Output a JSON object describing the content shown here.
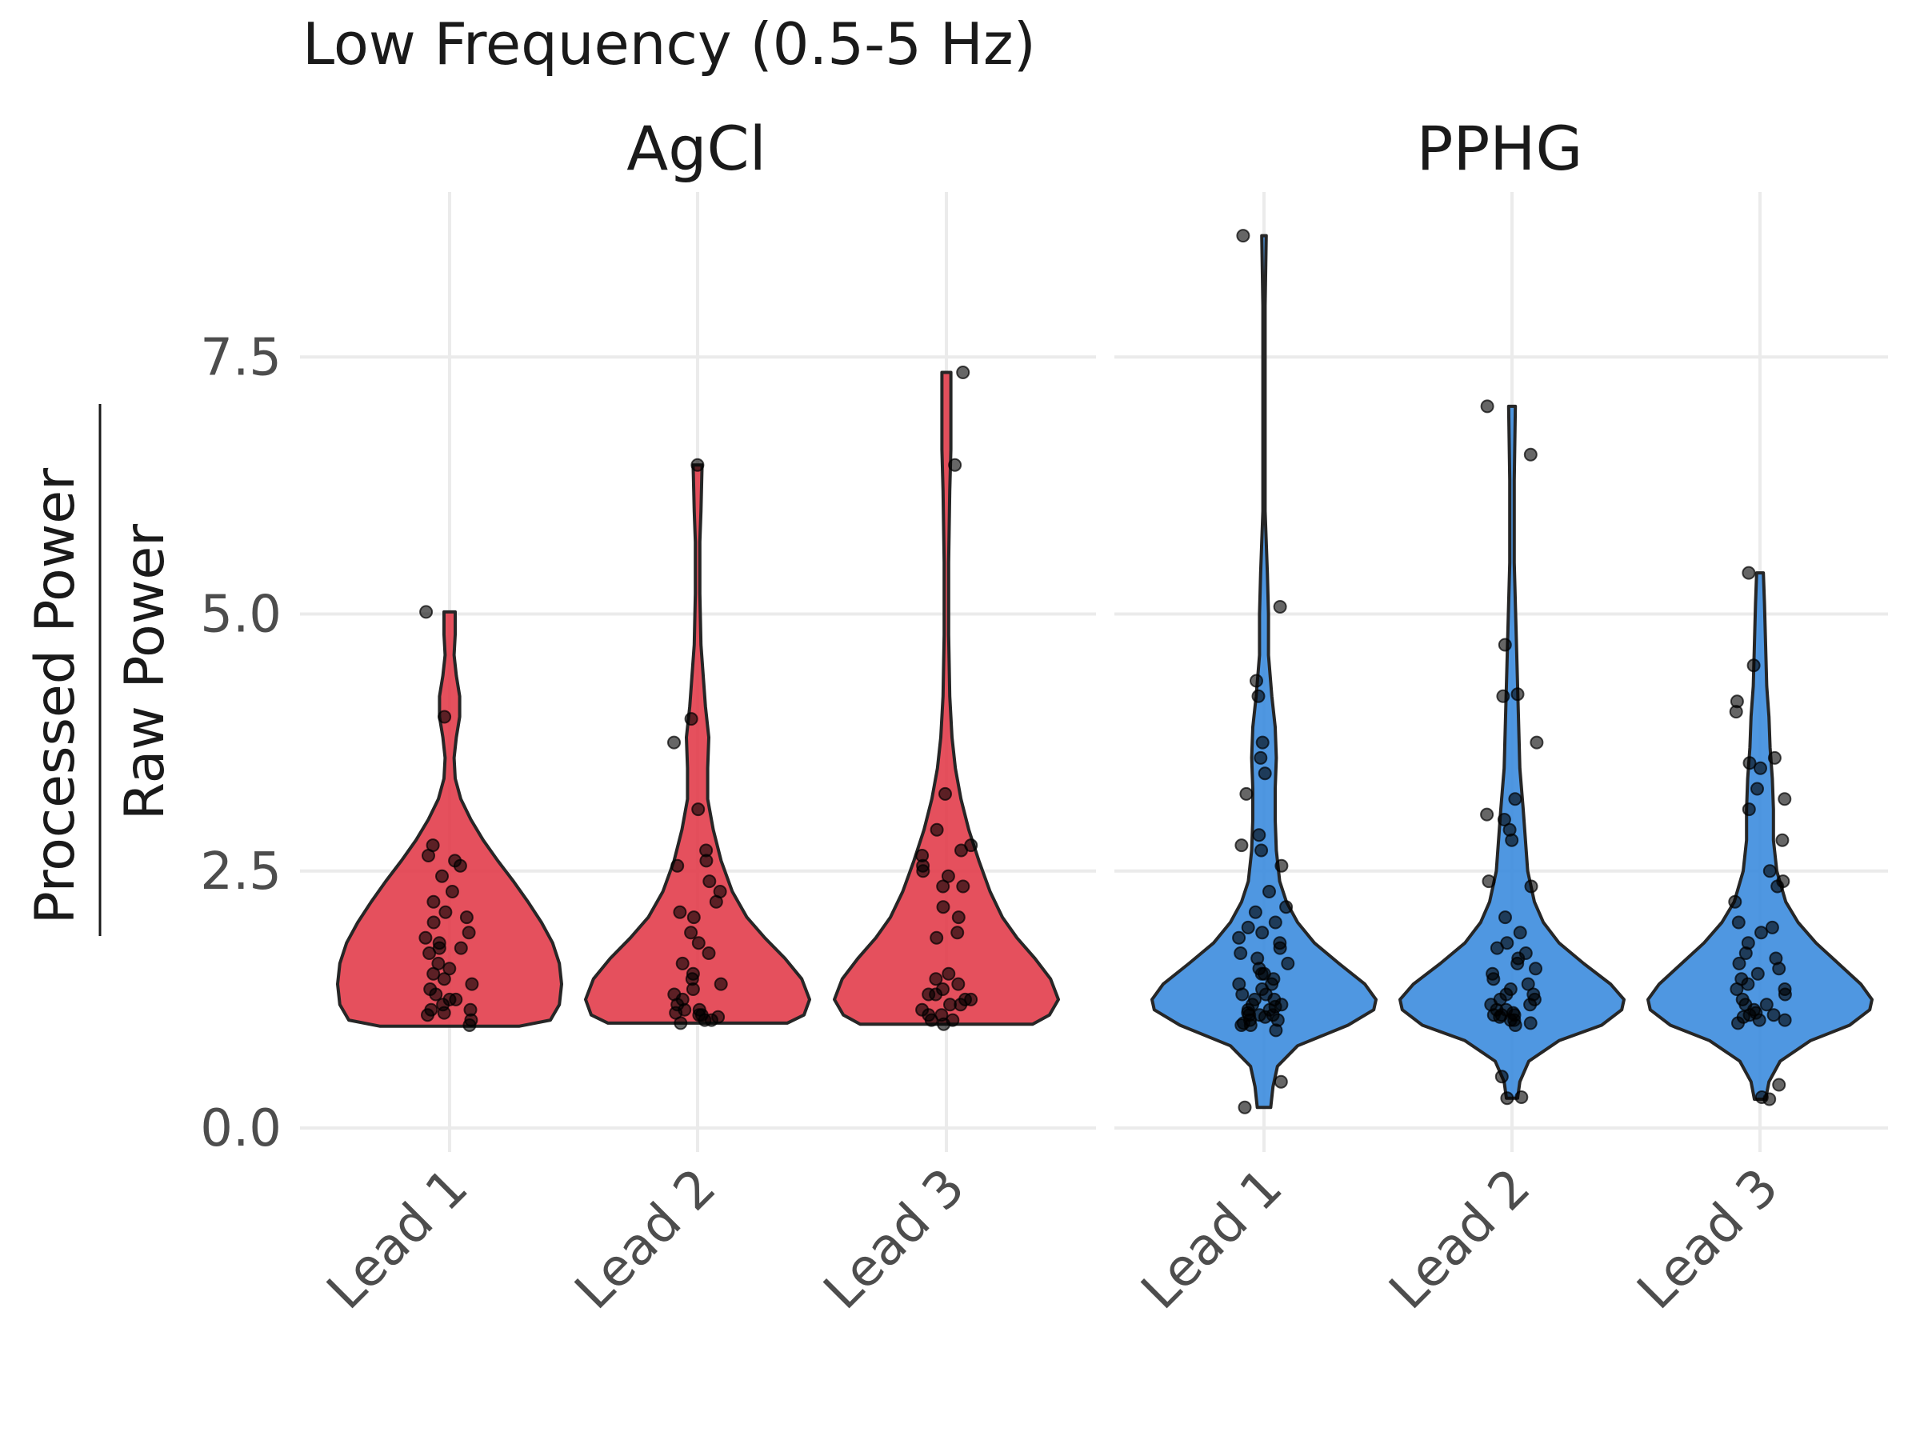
{
  "chart_data": {
    "type": "violin",
    "title": "Low Frequency (0.5-5 Hz)",
    "ylabel_numerator": "Processed Power",
    "ylabel_denominator": "Raw Power",
    "xlabel": "",
    "categories": [
      "Lead 1",
      "Lead 2",
      "Lead 3"
    ],
    "y_ticks": [
      "0.0",
      "2.5",
      "5.0",
      "7.5"
    ],
    "y_tick_values": [
      0,
      2.5,
      5.0,
      7.5
    ],
    "ylim": [
      -0.2,
      9.1
    ],
    "grid": true,
    "legend": "none",
    "facets": [
      {
        "name": "AgCl",
        "color": "#E23D4B",
        "series": [
          {
            "category": "Lead 1",
            "range": [
              0.99,
              5.02
            ],
            "profile": [
              [
                0.99,
                0.62
              ],
              [
                1.05,
                0.9
              ],
              [
                1.2,
                0.98
              ],
              [
                1.4,
                1.0
              ],
              [
                1.6,
                0.98
              ],
              [
                1.8,
                0.92
              ],
              [
                2.0,
                0.82
              ],
              [
                2.2,
                0.7
              ],
              [
                2.4,
                0.57
              ],
              [
                2.6,
                0.43
              ],
              [
                2.8,
                0.3
              ],
              [
                3.0,
                0.19
              ],
              [
                3.2,
                0.1
              ],
              [
                3.4,
                0.05
              ],
              [
                3.6,
                0.04
              ],
              [
                3.8,
                0.06
              ],
              [
                4.0,
                0.09
              ],
              [
                4.2,
                0.09
              ],
              [
                4.4,
                0.06
              ],
              [
                4.6,
                0.04
              ],
              [
                4.8,
                0.05
              ],
              [
                5.02,
                0.05
              ]
            ],
            "values": [
              1.0,
              1.05,
              1.1,
              1.12,
              1.15,
              1.15,
              1.2,
              1.25,
              1.25,
              1.3,
              1.35,
              1.4,
              1.45,
              1.5,
              1.55,
              1.6,
              1.7,
              1.75,
              1.75,
              1.8,
              1.85,
              1.9,
              2.0,
              2.05,
              2.1,
              2.2,
              2.3,
              2.45,
              2.55,
              2.6,
              2.65,
              2.75,
              4.0,
              5.02
            ]
          },
          {
            "category": "Lead 2",
            "range": [
              1.02,
              6.45
            ],
            "profile": [
              [
                1.02,
                0.8
              ],
              [
                1.1,
                0.95
              ],
              [
                1.25,
                1.0
              ],
              [
                1.45,
                0.93
              ],
              [
                1.65,
                0.78
              ],
              [
                1.85,
                0.6
              ],
              [
                2.05,
                0.44
              ],
              [
                2.3,
                0.31
              ],
              [
                2.6,
                0.21
              ],
              [
                2.9,
                0.14
              ],
              [
                3.2,
                0.09
              ],
              [
                3.5,
                0.09
              ],
              [
                3.8,
                0.1
              ],
              [
                4.1,
                0.07
              ],
              [
                4.4,
                0.05
              ],
              [
                4.7,
                0.03
              ],
              [
                5.2,
                0.02
              ],
              [
                5.7,
                0.02
              ],
              [
                6.0,
                0.03
              ],
              [
                6.45,
                0.04
              ]
            ],
            "values": [
              1.02,
              1.05,
              1.05,
              1.08,
              1.1,
              1.1,
              1.12,
              1.15,
              1.15,
              1.2,
              1.25,
              1.3,
              1.35,
              1.4,
              1.45,
              1.5,
              1.6,
              1.7,
              1.8,
              1.9,
              2.05,
              2.1,
              2.2,
              2.3,
              2.4,
              2.55,
              2.6,
              2.7,
              3.1,
              3.75,
              3.98,
              6.45
            ]
          },
          {
            "category": "Lead 3",
            "range": [
              1.01,
              7.35
            ],
            "profile": [
              [
                1.01,
                0.77
              ],
              [
                1.1,
                0.92
              ],
              [
                1.25,
                1.0
              ],
              [
                1.45,
                0.93
              ],
              [
                1.65,
                0.79
              ],
              [
                1.85,
                0.63
              ],
              [
                2.05,
                0.5
              ],
              [
                2.3,
                0.39
              ],
              [
                2.6,
                0.29
              ],
              [
                2.9,
                0.2
              ],
              [
                3.2,
                0.13
              ],
              [
                3.5,
                0.08
              ],
              [
                3.8,
                0.05
              ],
              [
                4.2,
                0.03
              ],
              [
                4.8,
                0.02
              ],
              [
                5.5,
                0.02
              ],
              [
                6.2,
                0.03
              ],
              [
                6.6,
                0.04
              ],
              [
                7.0,
                0.04
              ],
              [
                7.35,
                0.04
              ]
            ],
            "values": [
              1.01,
              1.05,
              1.05,
              1.1,
              1.1,
              1.15,
              1.2,
              1.2,
              1.25,
              1.25,
              1.3,
              1.3,
              1.35,
              1.4,
              1.45,
              1.5,
              1.85,
              1.9,
              2.05,
              2.15,
              2.35,
              2.35,
              2.45,
              2.5,
              2.55,
              2.65,
              2.7,
              2.75,
              2.9,
              3.25,
              6.45,
              7.35
            ]
          }
        ]
      },
      {
        "name": "PPHG",
        "color": "#3C8CDE",
        "series": [
          {
            "category": "Lead 1",
            "range": [
              0.2,
              8.68
            ],
            "profile": [
              [
                0.2,
                0.06
              ],
              [
                0.4,
                0.08
              ],
              [
                0.6,
                0.12
              ],
              [
                0.8,
                0.3
              ],
              [
                1.0,
                0.75
              ],
              [
                1.15,
                0.98
              ],
              [
                1.25,
                1.0
              ],
              [
                1.4,
                0.9
              ],
              [
                1.6,
                0.67
              ],
              [
                1.8,
                0.45
              ],
              [
                2.0,
                0.3
              ],
              [
                2.2,
                0.2
              ],
              [
                2.4,
                0.14
              ],
              [
                2.7,
                0.11
              ],
              [
                3.0,
                0.1
              ],
              [
                3.3,
                0.1
              ],
              [
                3.6,
                0.11
              ],
              [
                3.9,
                0.1
              ],
              [
                4.2,
                0.07
              ],
              [
                4.6,
                0.04
              ],
              [
                5.0,
                0.04
              ],
              [
                5.4,
                0.03
              ],
              [
                6.0,
                0.01
              ],
              [
                7.0,
                0.01
              ],
              [
                8.0,
                0.01
              ],
              [
                8.68,
                0.02
              ]
            ],
            "values": [
              0.2,
              0.45,
              0.95,
              1.0,
              1.0,
              1.02,
              1.05,
              1.05,
              1.08,
              1.1,
              1.1,
              1.1,
              1.12,
              1.15,
              1.15,
              1.18,
              1.2,
              1.2,
              1.25,
              1.25,
              1.3,
              1.3,
              1.35,
              1.4,
              1.4,
              1.45,
              1.5,
              1.5,
              1.55,
              1.6,
              1.65,
              1.7,
              1.75,
              1.8,
              1.85,
              1.9,
              1.95,
              2.0,
              2.1,
              2.15,
              2.3,
              2.55,
              2.7,
              2.75,
              2.85,
              3.25,
              3.45,
              3.6,
              3.75,
              4.2,
              4.35,
              5.07,
              8.68
            ]
          },
          {
            "category": "Lead 2",
            "range": [
              0.29,
              7.02
            ],
            "profile": [
              [
                0.29,
                0.05
              ],
              [
                0.45,
                0.07
              ],
              [
                0.65,
                0.15
              ],
              [
                0.85,
                0.42
              ],
              [
                1.0,
                0.8
              ],
              [
                1.15,
                0.98
              ],
              [
                1.25,
                1.0
              ],
              [
                1.4,
                0.88
              ],
              [
                1.6,
                0.64
              ],
              [
                1.8,
                0.42
              ],
              [
                2.0,
                0.28
              ],
              [
                2.2,
                0.2
              ],
              [
                2.5,
                0.14
              ],
              [
                2.8,
                0.12
              ],
              [
                3.1,
                0.1
              ],
              [
                3.5,
                0.07
              ],
              [
                3.9,
                0.06
              ],
              [
                4.3,
                0.05
              ],
              [
                4.7,
                0.04
              ],
              [
                5.5,
                0.02
              ],
              [
                6.3,
                0.02
              ],
              [
                7.02,
                0.03
              ]
            ],
            "values": [
              0.29,
              0.3,
              0.5,
              1.0,
              1.02,
              1.05,
              1.05,
              1.08,
              1.1,
              1.1,
              1.1,
              1.12,
              1.15,
              1.15,
              1.2,
              1.2,
              1.25,
              1.25,
              1.3,
              1.3,
              1.35,
              1.4,
              1.45,
              1.5,
              1.55,
              1.6,
              1.65,
              1.7,
              1.75,
              1.8,
              1.9,
              2.05,
              2.35,
              2.4,
              2.8,
              2.9,
              3.0,
              3.05,
              3.2,
              3.75,
              4.2,
              4.22,
              4.7,
              6.55,
              7.02
            ]
          },
          {
            "category": "Lead 3",
            "range": [
              0.28,
              5.4
            ],
            "profile": [
              [
                0.28,
                0.05
              ],
              [
                0.45,
                0.08
              ],
              [
                0.65,
                0.18
              ],
              [
                0.85,
                0.45
              ],
              [
                1.0,
                0.8
              ],
              [
                1.15,
                0.98
              ],
              [
                1.25,
                1.0
              ],
              [
                1.4,
                0.9
              ],
              [
                1.6,
                0.7
              ],
              [
                1.8,
                0.5
              ],
              [
                2.0,
                0.34
              ],
              [
                2.2,
                0.23
              ],
              [
                2.5,
                0.15
              ],
              [
                2.8,
                0.12
              ],
              [
                3.1,
                0.12
              ],
              [
                3.4,
                0.11
              ],
              [
                3.7,
                0.09
              ],
              [
                4.0,
                0.08
              ],
              [
                4.3,
                0.06
              ],
              [
                4.7,
                0.05
              ],
              [
                5.1,
                0.04
              ],
              [
                5.4,
                0.03
              ]
            ],
            "values": [
              0.28,
              0.3,
              0.42,
              1.02,
              1.05,
              1.05,
              1.08,
              1.1,
              1.1,
              1.12,
              1.15,
              1.2,
              1.2,
              1.25,
              1.3,
              1.35,
              1.35,
              1.4,
              1.45,
              1.5,
              1.55,
              1.6,
              1.65,
              1.7,
              1.8,
              1.9,
              1.95,
              2.0,
              2.2,
              2.35,
              2.4,
              2.5,
              2.8,
              3.1,
              3.2,
              3.3,
              3.5,
              3.55,
              3.6,
              4.05,
              4.15,
              4.5,
              5.4
            ]
          }
        ]
      }
    ]
  }
}
